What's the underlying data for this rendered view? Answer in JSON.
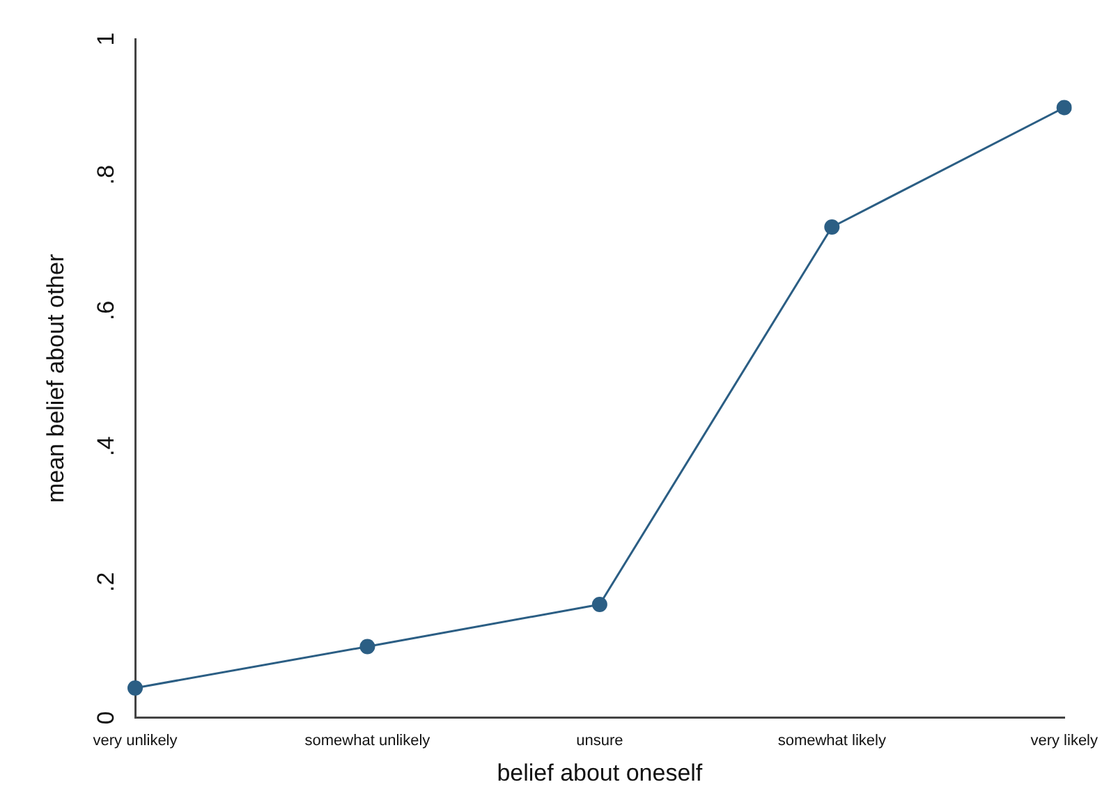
{
  "chart_data": {
    "type": "line",
    "xlabel": "belief about oneself",
    "ylabel": "mean belief about other",
    "categories": [
      "very unlikely",
      "somewhat unlikely",
      "unsure",
      "somewhat likely",
      "very likely"
    ],
    "series": [
      {
        "color": "#2b5e84",
        "values": [
          0.044,
          0.105,
          0.167,
          0.723,
          0.899
        ]
      }
    ],
    "ylim": [
      0,
      1
    ],
    "yticks": [
      0,
      {
        "value": 0.2,
        "label": ".2"
      },
      {
        "value": 0.4,
        "label": ".4"
      },
      {
        "value": 0.6,
        "label": ".6"
      },
      {
        "value": 0.8,
        "label": ".8"
      },
      1
    ],
    "marker": "circle",
    "line_style": "solid",
    "grid": false,
    "legend": false
  }
}
